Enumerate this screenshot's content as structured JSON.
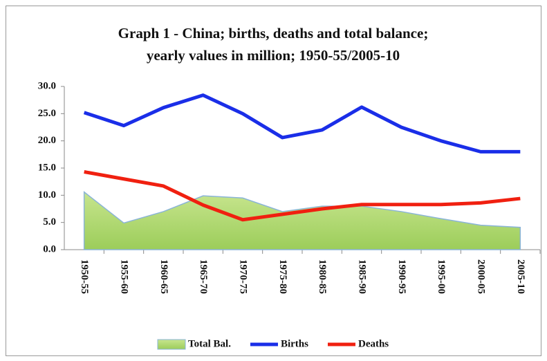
{
  "chart_data": {
    "type": "line",
    "title": "Graph 1 - China; births, deaths and total balance;",
    "subtitle": "yearly values in million; 1950-55/2005-10",
    "categories": [
      "1950-55",
      "1955-60",
      "1960-65",
      "1965-70",
      "1970-75",
      "1975-80",
      "1980-85",
      "1985-90",
      "1990-95",
      "1995-00",
      "2000-05",
      "2005-10"
    ],
    "series": [
      {
        "name": "Total Bal.",
        "color": "#b5d97a",
        "kind": "area",
        "values": [
          10.6,
          4.9,
          7.0,
          9.9,
          9.5,
          7.0,
          8.0,
          8.0,
          7.0,
          5.7,
          4.5,
          4.1
        ]
      },
      {
        "name": "Births",
        "color": "#1a2ee8",
        "kind": "line",
        "values": [
          25.2,
          22.8,
          26.1,
          28.4,
          25.0,
          20.6,
          22.0,
          26.2,
          22.5,
          20.0,
          18.0,
          18.0
        ]
      },
      {
        "name": "Deaths",
        "color": "#f02010",
        "kind": "line",
        "values": [
          14.3,
          13.0,
          11.7,
          8.2,
          5.5,
          6.5,
          7.5,
          8.3,
          8.3,
          8.3,
          8.6,
          9.4
        ]
      }
    ],
    "ylim": [
      0,
      30
    ],
    "yticks": [
      {
        "value": 0,
        "label": "0.0"
      },
      {
        "value": 5,
        "label": "5.0"
      },
      {
        "value": 10,
        "label": "10.0"
      },
      {
        "value": 15,
        "label": "15.0"
      },
      {
        "value": 20,
        "label": "20.0"
      },
      {
        "value": 25,
        "label": "25.0"
      },
      {
        "value": 30,
        "label": "30.0"
      }
    ],
    "legend": "bottom"
  }
}
